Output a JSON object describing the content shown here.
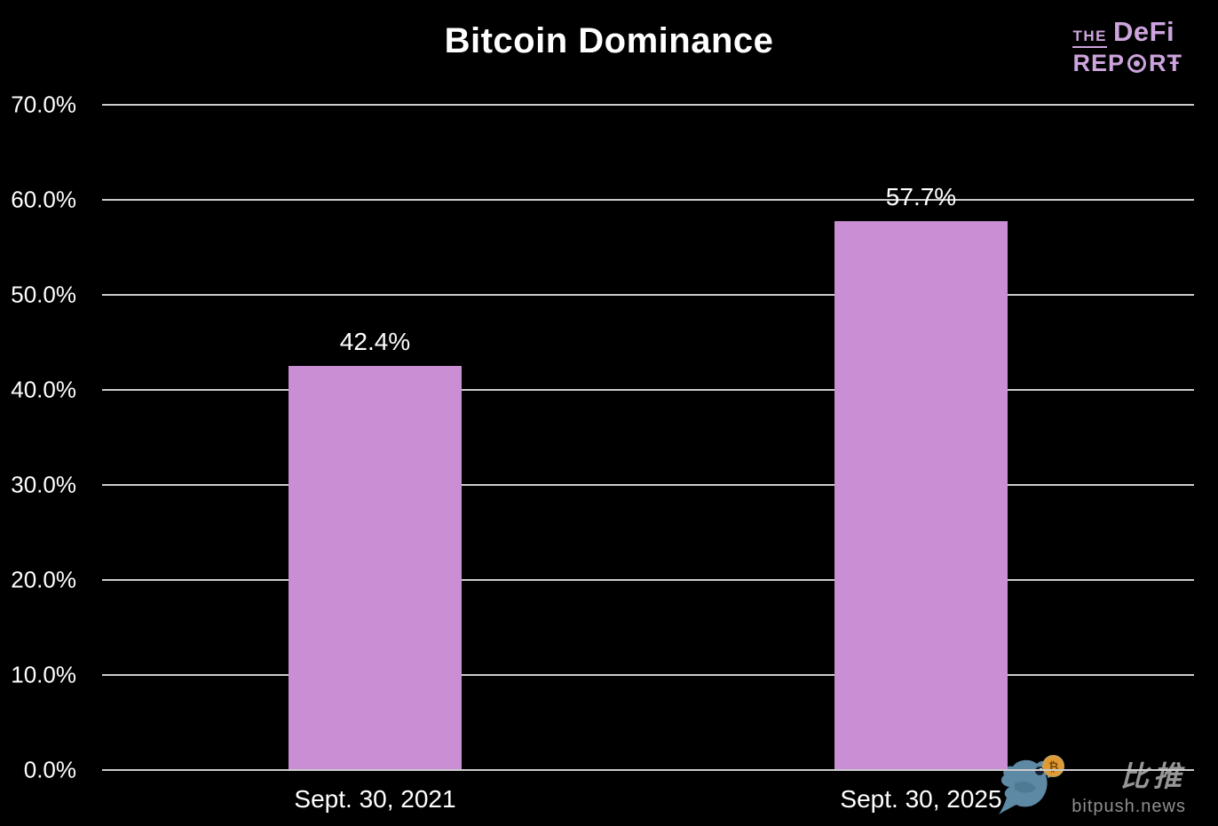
{
  "title": "Bitcoin Dominance",
  "logo": {
    "the": "THE",
    "defi": "DeFi",
    "report_pre": "REP",
    "report_post": "RŦ",
    "color": "#cda4dd"
  },
  "chart_data": {
    "type": "bar",
    "title": "Bitcoin Dominance",
    "categories": [
      "Sept. 30, 2021",
      "Sept. 30, 2025"
    ],
    "values": [
      42.4,
      57.7
    ],
    "value_labels": [
      "42.4%",
      "57.7%"
    ],
    "xlabel": "",
    "ylabel": "",
    "ylim": [
      0,
      70
    ],
    "ytick_step": 10,
    "ytick_labels": [
      "0.0%",
      "10.0%",
      "20.0%",
      "30.0%",
      "40.0%",
      "50.0%",
      "60.0%",
      "70.0%"
    ],
    "grid": true,
    "legend": false,
    "bar_color": "#c98ed3",
    "gridline_color": "#cccccc",
    "background_color": "#000000",
    "text_color": "#ffffff"
  },
  "watermark": {
    "cn": "比推",
    "site": "bitpush.news",
    "bird_color": "#5d89a5",
    "coin_symbol": "₿",
    "coin_color": "#e09a2f",
    "text_color": "#969696"
  }
}
